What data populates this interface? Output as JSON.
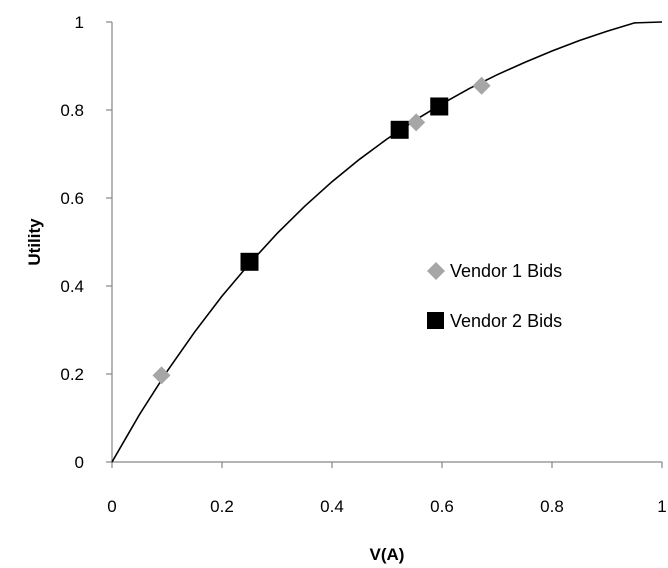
{
  "chart_data": {
    "type": "scatter",
    "title": "",
    "xlabel": "V(A)",
    "ylabel": "Utility",
    "xlim": [
      0,
      1
    ],
    "ylim": [
      0,
      1
    ],
    "x_ticks": [
      "0",
      "0.2",
      "0.4",
      "0.6",
      "0.8",
      "1"
    ],
    "y_ticks": [
      "0",
      "0.2",
      "0.4",
      "0.6",
      "0.8",
      "1"
    ],
    "grid": false,
    "legend_position": "center-right",
    "curve": {
      "x": [
        0,
        0.05,
        0.1,
        0.15,
        0.2,
        0.25,
        0.3,
        0.35,
        0.4,
        0.45,
        0.5,
        0.55,
        0.6,
        0.65,
        0.7,
        0.75,
        0.8,
        0.85,
        0.9,
        0.95,
        1.0
      ],
      "y": [
        0,
        0.108,
        0.206,
        0.295,
        0.377,
        0.451,
        0.519,
        0.581,
        0.637,
        0.688,
        0.734,
        0.776,
        0.814,
        0.849,
        0.88,
        0.908,
        0.934,
        0.958,
        0.979,
        0.998,
        1.0
      ],
      "color": "#000000"
    },
    "series": [
      {
        "name": "Vendor 1 Bids",
        "marker": "diamond",
        "color": "#a6a6a6",
        "points": [
          {
            "x": 0.09,
            "y": 0.197
          },
          {
            "x": 0.553,
            "y": 0.772
          },
          {
            "x": 0.672,
            "y": 0.855
          }
        ]
      },
      {
        "name": "Vendor 2 Bids",
        "marker": "square",
        "color": "#000000",
        "points": [
          {
            "x": 0.25,
            "y": 0.455
          },
          {
            "x": 0.523,
            "y": 0.755
          },
          {
            "x": 0.595,
            "y": 0.808
          }
        ]
      }
    ]
  }
}
